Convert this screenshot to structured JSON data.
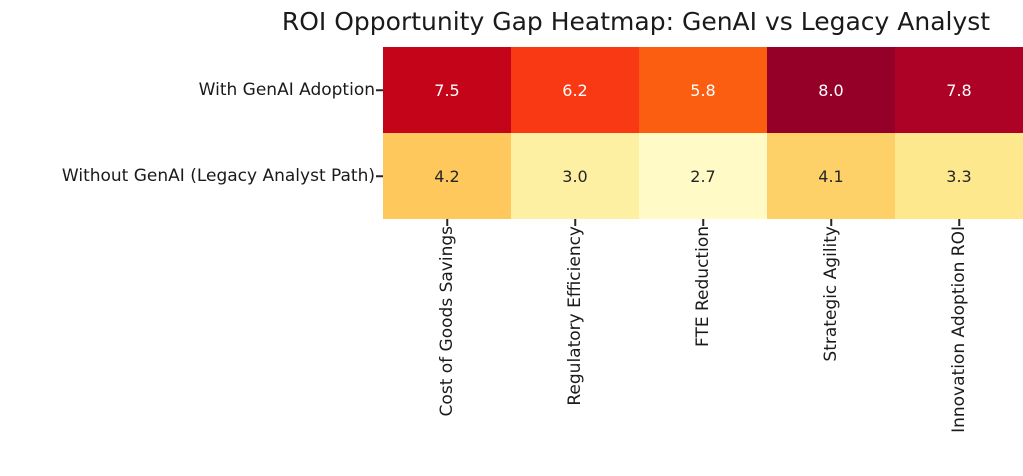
{
  "chart_data": {
    "type": "heatmap",
    "title": "ROI Opportunity Gap Heatmap: GenAI vs Legacy Analyst",
    "rows": [
      "With GenAI Adoption",
      "Without GenAI (Legacy Analyst Path)"
    ],
    "columns": [
      "Cost of Goods Savings",
      "Regulatory Efficiency",
      "FTE Reduction",
      "Strategic Agility",
      "Innovation Adoption ROI"
    ],
    "values": [
      [
        7.5,
        6.2,
        5.8,
        8.0,
        7.8
      ],
      [
        4.2,
        3.0,
        2.7,
        4.1,
        3.3
      ]
    ],
    "value_labels": [
      [
        "7.5",
        "6.2",
        "5.8",
        "8.0",
        "7.8"
      ],
      [
        "4.2",
        "3.0",
        "2.7",
        "4.1",
        "3.3"
      ]
    ],
    "cell_colors": [
      [
        "#c40418",
        "#f93814",
        "#fc5e11",
        "#940028",
        "#ad0126"
      ],
      [
        "#fec85d",
        "#fdf0a3",
        "#fffac6",
        "#fed168",
        "#fee88e"
      ]
    ],
    "cell_text_colors": [
      [
        "#ffffff",
        "#ffffff",
        "#ffffff",
        "#ffffff",
        "#ffffff"
      ],
      [
        "#262626",
        "#262626",
        "#262626",
        "#262626",
        "#262626"
      ]
    ],
    "colormap": "YlOrRd",
    "vmin": 2.7,
    "vmax": 8.0,
    "annotations": true,
    "colorbar": false,
    "grid": false,
    "x_tick_rotation_deg": 90,
    "background_color": "#ffffff",
    "axis_text_color": "#1a1a1a",
    "tick_color": "#262626"
  }
}
